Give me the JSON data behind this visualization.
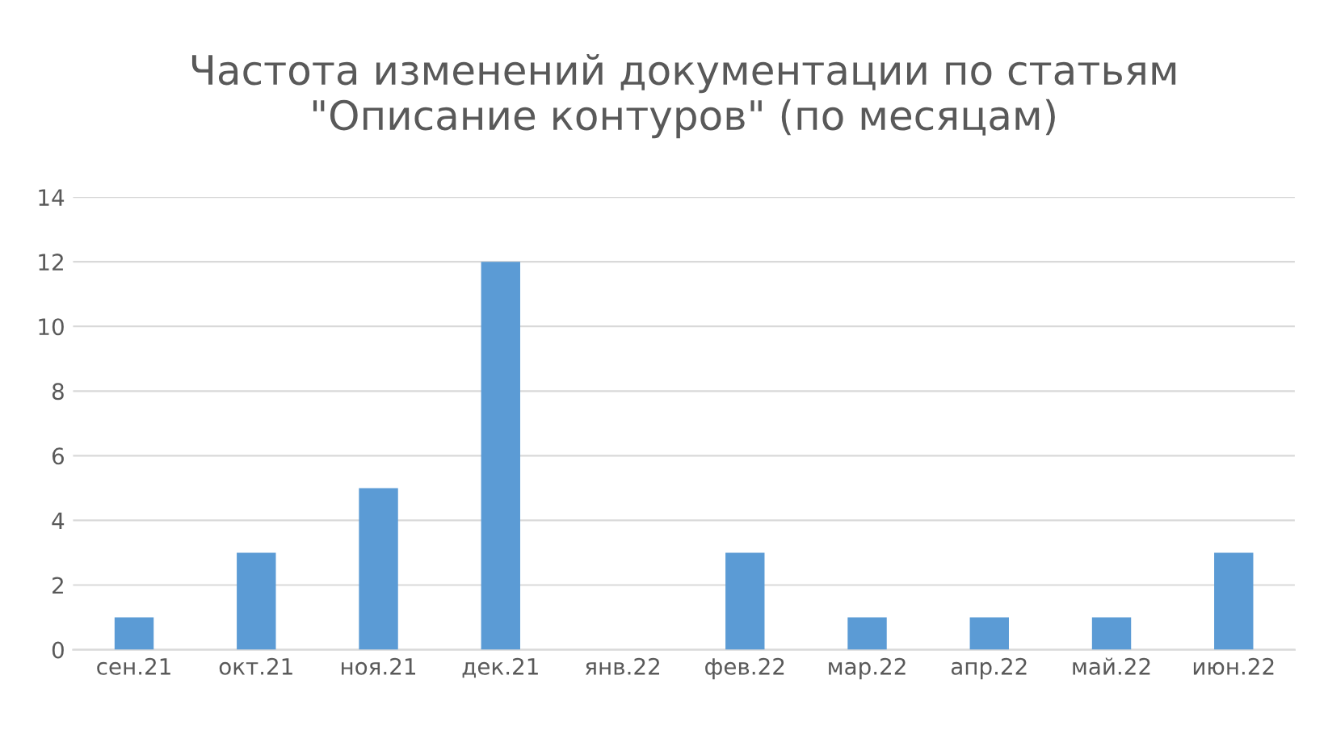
{
  "chart_data": {
    "type": "bar",
    "title": "Частота изменений документации по статьям\n\"Описание контуров\" (по месяцам)",
    "categories": [
      "сен.21",
      "окт.21",
      "ноя.21",
      "дек.21",
      "янв.22",
      "фев.22",
      "мар.22",
      "апр.22",
      "май.22",
      "июн.22"
    ],
    "values": [
      1,
      3,
      5,
      12,
      0,
      3,
      1,
      1,
      1,
      3
    ],
    "color": "#5b9bd5",
    "ylim": [
      0,
      14
    ],
    "yticks": [
      0,
      2,
      4,
      6,
      8,
      10,
      12,
      14
    ],
    "grid": "y",
    "legend": false
  }
}
